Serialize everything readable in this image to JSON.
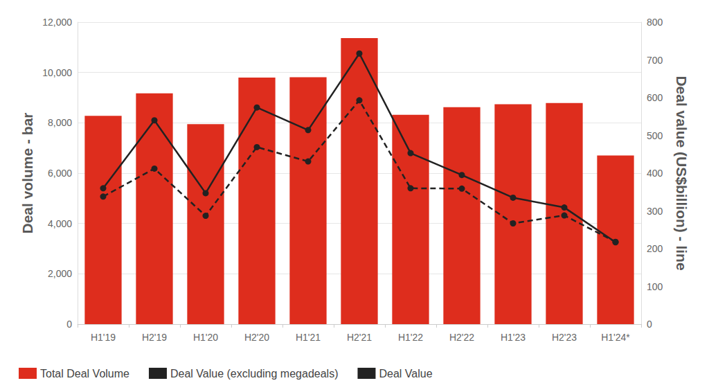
{
  "chart_data": {
    "type": "bar",
    "categories": [
      "H1'19",
      "H2'19",
      "H1'20",
      "H2'20",
      "H1'21",
      "H2'21",
      "H1'22",
      "H2'22",
      "H1'23",
      "H2'23",
      "H1'24*"
    ],
    "series": [
      {
        "name": "Total Deal Volume",
        "type": "bar",
        "color": "#de2d1d",
        "values": [
          8280,
          9170,
          7950,
          9800,
          9810,
          11370,
          8320,
          8620,
          8740,
          8790,
          6700
        ]
      },
      {
        "name": "Deal Value (excluding megadeals)",
        "type": "line",
        "axis": "y2",
        "color": "#222222",
        "line_style": "dashed",
        "marker": "circle",
        "values": [
          338,
          412,
          287,
          469,
          431,
          593,
          360,
          359,
          267,
          288,
          218
        ]
      },
      {
        "name": "Deal Value",
        "type": "line",
        "axis": "y2",
        "color": "#222222",
        "line_style": "solid",
        "marker": "circle",
        "values": [
          360,
          540,
          347,
          574,
          514,
          717,
          453,
          395,
          335,
          309,
          217
        ]
      }
    ],
    "ylabel": "Deal volume - bar",
    "y2label": "Deal value (US$billion) - line",
    "ylim": [
      0,
      12000
    ],
    "yticks": [
      0,
      {
        "value": 2000,
        "label": "2,000"
      },
      {
        "value": 4000,
        "label": "4,000"
      },
      {
        "value": 6000,
        "label": "6,000"
      },
      {
        "value": 8000,
        "label": "8,000"
      },
      {
        "value": 10000,
        "label": "10,000"
      },
      {
        "value": 12000,
        "label": "12,000"
      }
    ],
    "y2lim": [
      0,
      800
    ],
    "y2ticks": [
      0,
      100,
      200,
      300,
      400,
      500,
      600,
      700,
      800
    ],
    "grid": true,
    "legend": "bottom"
  }
}
